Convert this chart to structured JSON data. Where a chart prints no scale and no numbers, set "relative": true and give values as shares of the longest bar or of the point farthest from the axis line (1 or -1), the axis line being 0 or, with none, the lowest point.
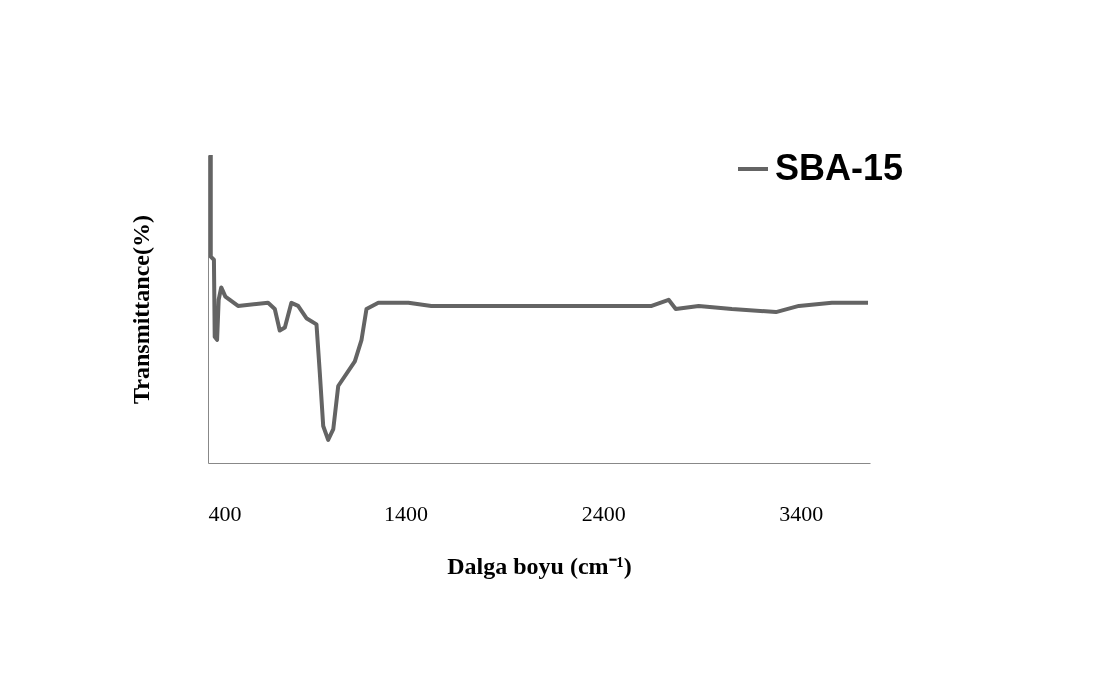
{
  "chart_data": {
    "type": "line",
    "xlabel": "Dalga boyu (cm⁻¹)",
    "ylabel": "Transmittance(%)",
    "relative": true,
    "xlim": [
      400,
      3750
    ],
    "xticks": [
      400,
      1400,
      2400,
      3400
    ],
    "grid": false,
    "legend": "top right",
    "marker": "none",
    "line_style": "solid",
    "tick_labels": "x",
    "series": [
      {
        "name": "SBA-15",
        "color": "#646464",
        "x": [
          414,
          414,
          430,
          434,
          446,
          454,
          467,
          488,
          552,
          704,
          738,
          763,
          789,
          822,
          856,
          898,
          949,
          966,
          983,
          1008,
          1034,
          1059,
          1143,
          1177,
          1202,
          1262,
          1414,
          1530,
          1905,
          2037,
          2645,
          2731,
          2767,
          2883,
          3051,
          3274,
          3390,
          3557,
          3740
        ],
        "values": [
          1.0,
          0.67,
          0.66,
          0.41,
          0.4,
          0.53,
          0.57,
          0.54,
          0.51,
          0.52,
          0.5,
          0.43,
          0.44,
          0.52,
          0.51,
          0.47,
          0.45,
          0.29,
          0.12,
          0.075,
          0.11,
          0.25,
          0.33,
          0.4,
          0.5,
          0.52,
          0.52,
          0.51,
          0.51,
          0.51,
          0.51,
          0.53,
          0.5,
          0.51,
          0.5,
          0.49,
          0.51,
          0.52,
          0.52
        ]
      }
    ]
  }
}
